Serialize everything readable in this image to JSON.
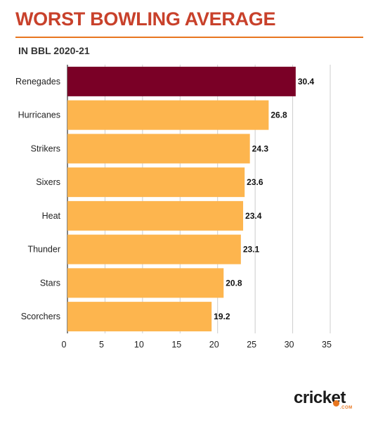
{
  "header": {
    "title": "WORST BOWLING AVERAGE",
    "subtitle": "IN BBL 2020-21"
  },
  "colors": {
    "title": "#c8412b",
    "rule": "#e8761f",
    "highlight_bar": "#7a0026",
    "bar": "#fdb54e",
    "grid": "#cccccc",
    "axis": "#333333",
    "logo_accent": "#e8761f"
  },
  "logo": {
    "word": "cricket",
    "suffix": ".COM"
  },
  "chart_data": {
    "type": "bar",
    "orientation": "horizontal",
    "title": "WORST BOWLING AVERAGE",
    "subtitle": "IN BBL 2020-21",
    "xlabel": "",
    "ylabel": "",
    "categories": [
      "Renegades",
      "Hurricanes",
      "Strikers",
      "Sixers",
      "Heat",
      "Thunder",
      "Stars",
      "Scorchers"
    ],
    "values": [
      30.4,
      26.8,
      24.3,
      23.6,
      23.4,
      23.1,
      20.8,
      19.2
    ],
    "value_labels": [
      "30.4",
      "26.8",
      "24.3",
      "23.6",
      "23.4",
      "23.1",
      "20.8",
      "19.2"
    ],
    "highlight_index": 0,
    "xlim": [
      0,
      35
    ],
    "xticks": [
      0,
      5,
      10,
      15,
      20,
      25,
      30,
      35
    ],
    "grid": true,
    "legend": "none"
  }
}
